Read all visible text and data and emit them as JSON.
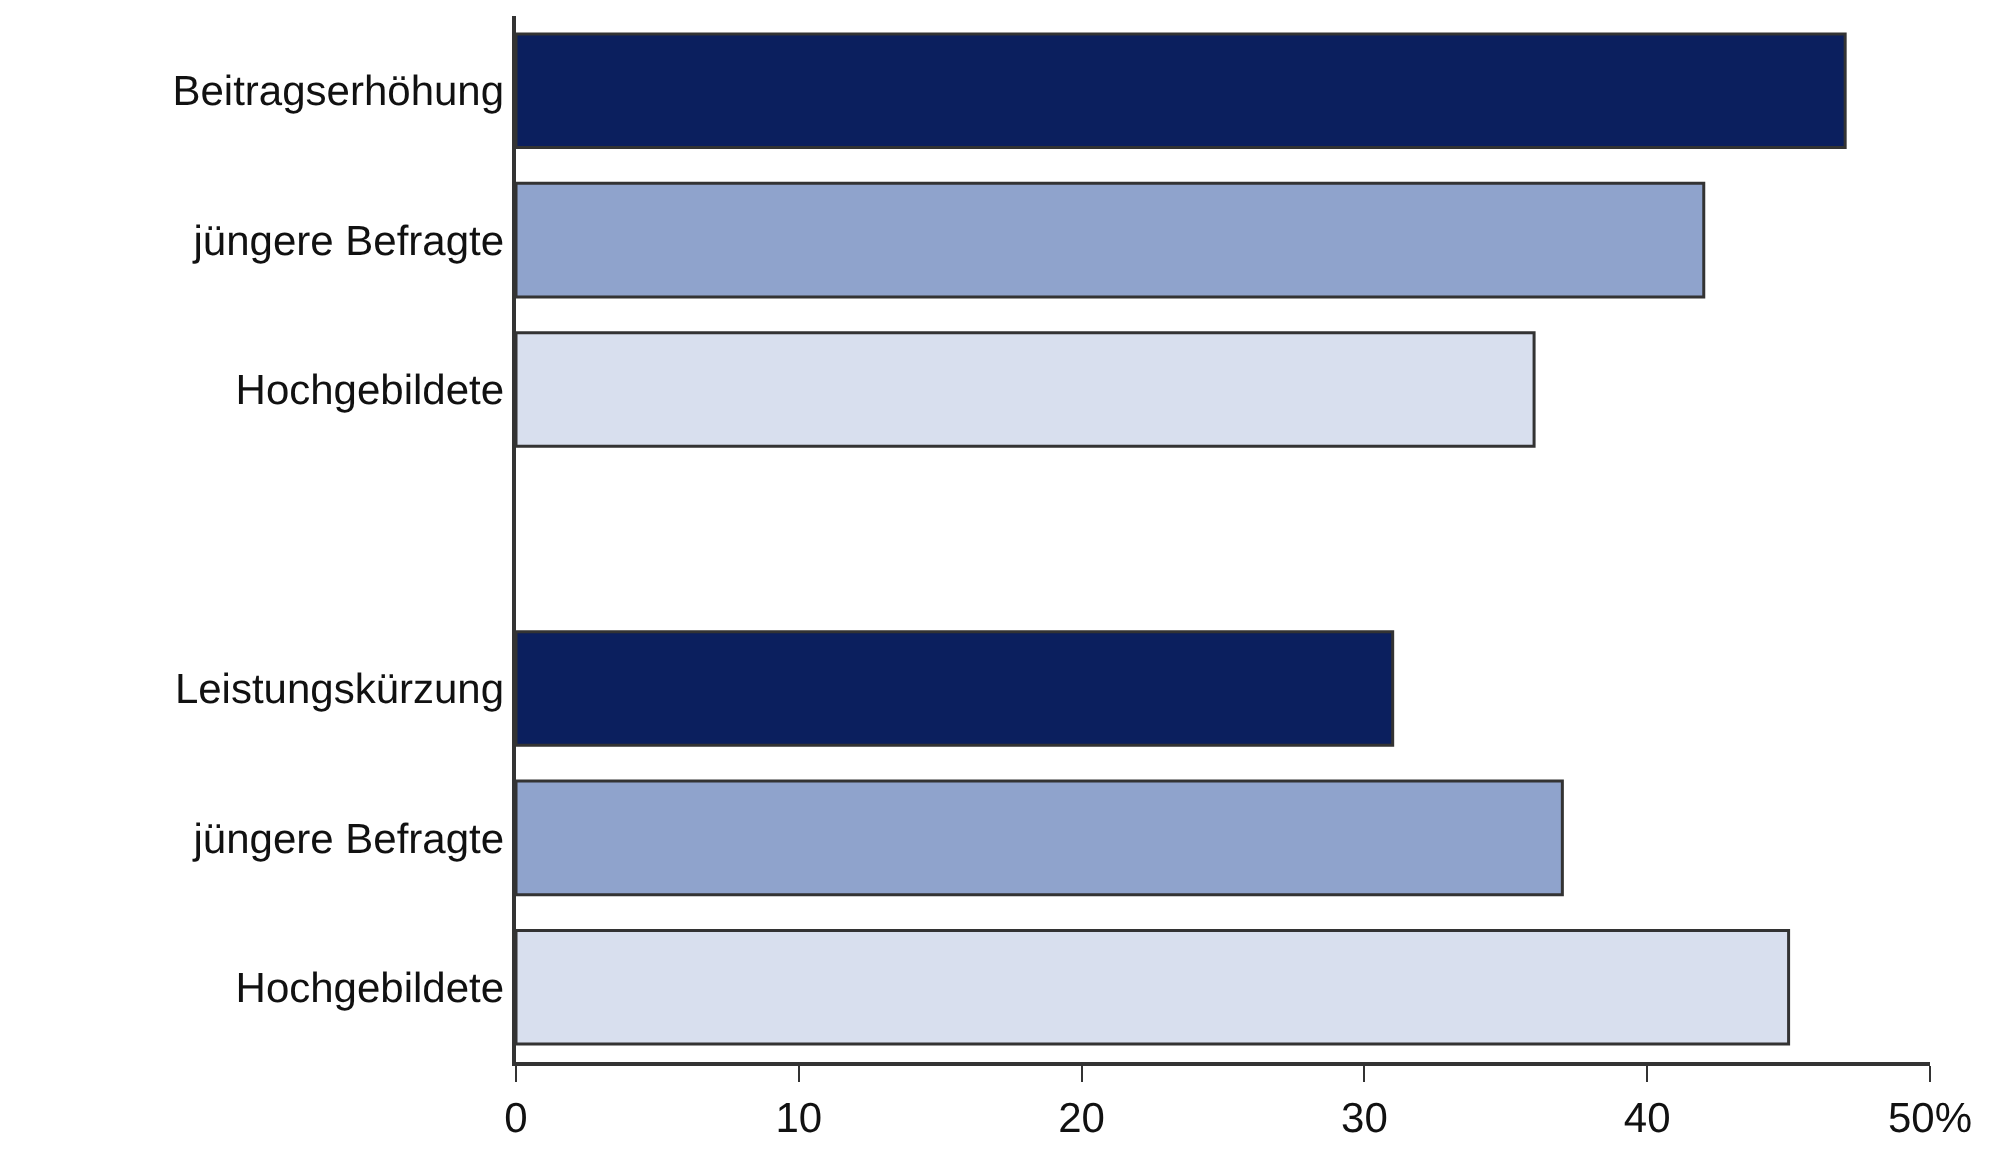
{
  "chart_data": {
    "type": "bar",
    "orientation": "horizontal",
    "categories": [
      "Beitragserhöhung",
      "jüngere Befragte",
      "Hochgebildete",
      null,
      "Leistungskürzung",
      "jüngere Befragte",
      "Hochgebildete"
    ],
    "values": [
      47,
      42,
      36,
      null,
      31,
      37,
      45
    ],
    "colors": [
      "#0b1f5e",
      "#8fa3cc",
      "#d8dfee",
      null,
      "#0b1f5e",
      "#8fa3cc",
      "#d8dfee"
    ],
    "xlim": [
      0,
      50
    ],
    "xticks": [
      0,
      10,
      20,
      30,
      40,
      {
        "value": 50,
        "label": "50%"
      }
    ]
  }
}
